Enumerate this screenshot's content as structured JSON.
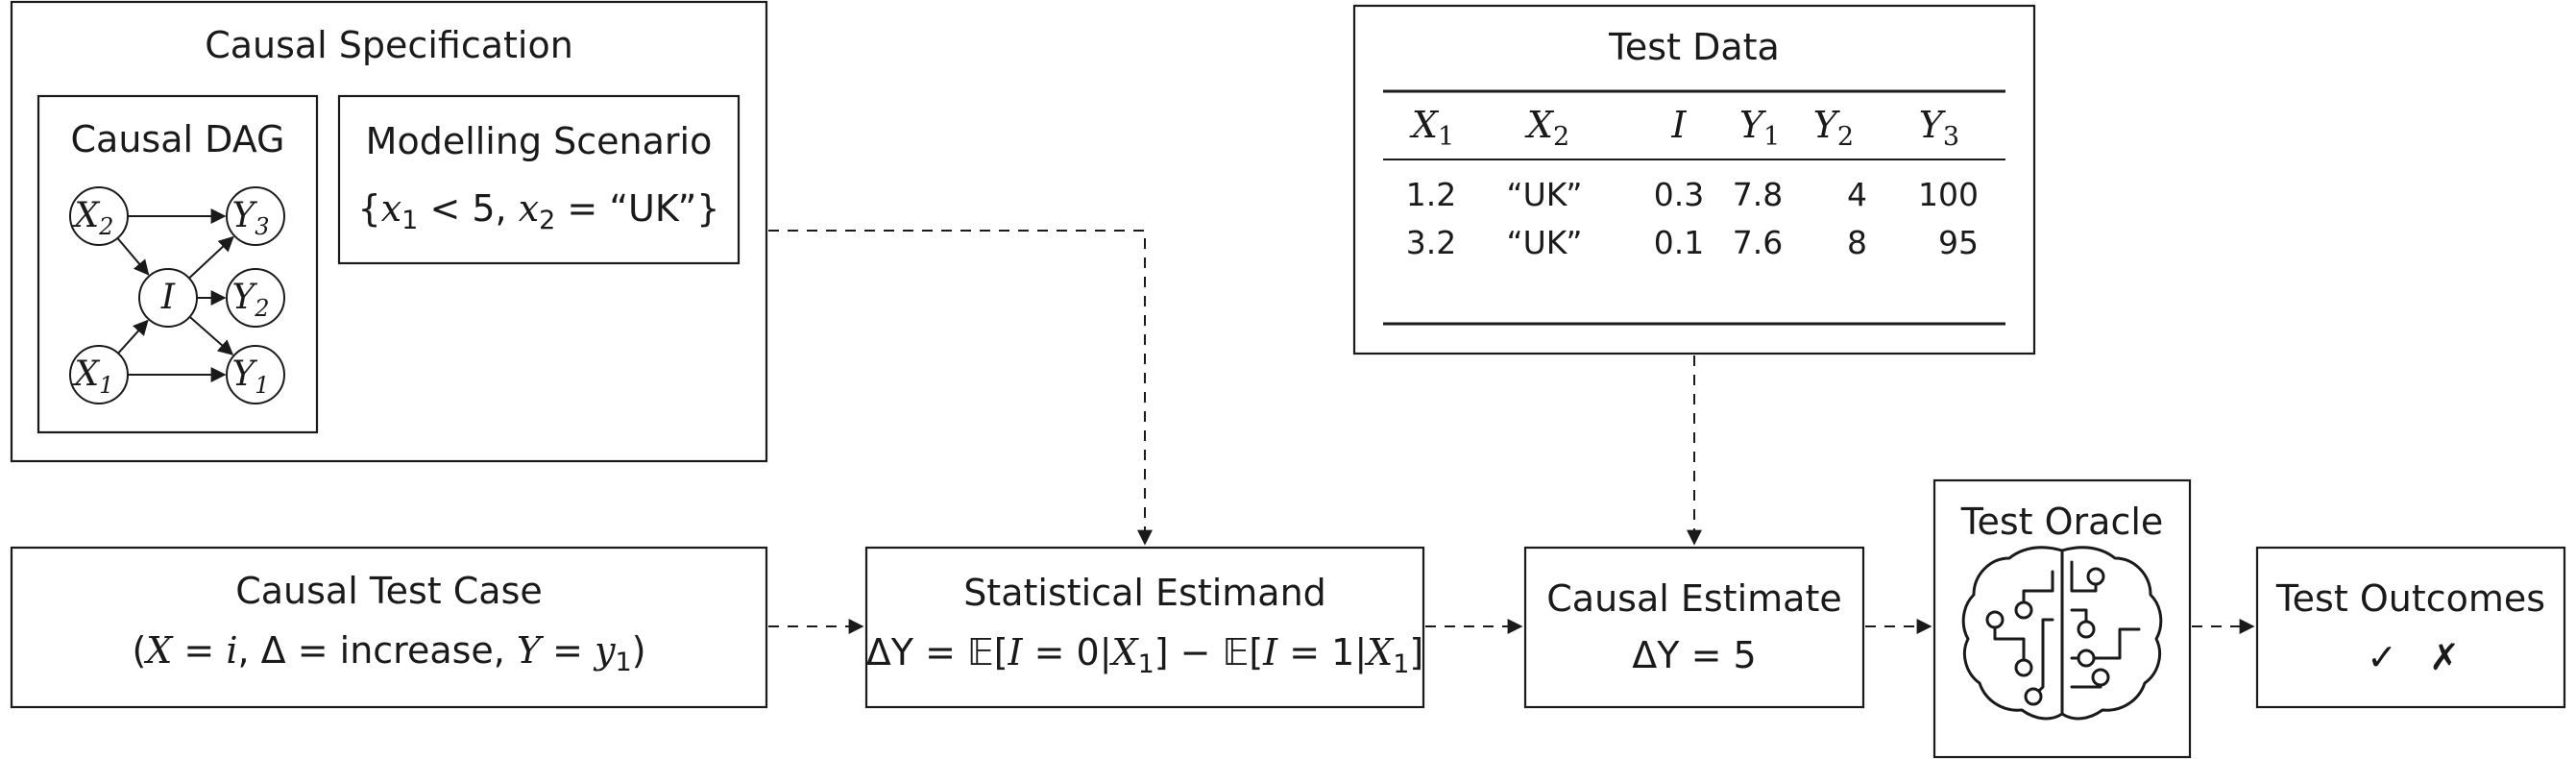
{
  "causal_specification": {
    "title": "Causal Specification",
    "dag": {
      "title": "Causal DAG",
      "nodes": [
        {
          "id": "X2",
          "base": "X",
          "sub": "2"
        },
        {
          "id": "X1",
          "base": "X",
          "sub": "1"
        },
        {
          "id": "I",
          "base": "I",
          "sub": ""
        },
        {
          "id": "Y3",
          "base": "Y",
          "sub": "3"
        },
        {
          "id": "Y2",
          "base": "Y",
          "sub": "2"
        },
        {
          "id": "Y1",
          "base": "Y",
          "sub": "1"
        }
      ],
      "edges": [
        [
          "X2",
          "Y3"
        ],
        [
          "X2",
          "I"
        ],
        [
          "X1",
          "I"
        ],
        [
          "X1",
          "Y1"
        ],
        [
          "I",
          "Y3"
        ],
        [
          "I",
          "Y2"
        ],
        [
          "I",
          "Y1"
        ]
      ]
    },
    "scenario": {
      "title": "Modelling Scenario",
      "open": "{",
      "var1": "x",
      "var1_sub": "1",
      "cond1": " < 5, ",
      "var2": "x",
      "var2_sub": "2",
      "cond2": " = “UK”}"
    }
  },
  "test_data": {
    "title": "Test Data",
    "columns": [
      {
        "base": "X",
        "sub": "1"
      },
      {
        "base": "X",
        "sub": "2"
      },
      {
        "base": "I",
        "sub": ""
      },
      {
        "base": "Y",
        "sub": "1"
      },
      {
        "base": "Y",
        "sub": "2"
      },
      {
        "base": "Y",
        "sub": "3"
      }
    ],
    "rows": [
      [
        "1.2",
        "“UK”",
        "0.3",
        "7.8",
        "4",
        "100"
      ],
      [
        "3.2",
        "“UK”",
        "0.1",
        "7.6",
        "8",
        "95"
      ]
    ]
  },
  "causal_test_case": {
    "title": "Causal Test Case",
    "open": "(",
    "x": "X",
    "eq1": " = ",
    "i": "i",
    "delta": ", Δ = increase, ",
    "y": "Y",
    "eq2": " = ",
    "y1": "y",
    "y1_sub": "1",
    "close": ")"
  },
  "statistical_estimand": {
    "title": "Statistical Estimand",
    "lhs": "ΔY",
    "expr_a": " = 𝔼[",
    "i1": "I",
    "mid1": " = 0|",
    "x1": "X",
    "x1_sub": "1",
    "mid2": "] − 𝔼[",
    "i2": "I",
    "mid3": " = 1|",
    "x2": "X",
    "x2_sub": "1",
    "end": "]"
  },
  "causal_estimate": {
    "title": "Causal Estimate",
    "lhs": "ΔY",
    "rhs": " = 5"
  },
  "test_oracle": {
    "title": "Test Oracle",
    "icon": "brain-circuit-icon"
  },
  "test_outcomes": {
    "title": "Test Outcomes",
    "pass_symbol": "✓",
    "fail_symbol": "✗"
  }
}
